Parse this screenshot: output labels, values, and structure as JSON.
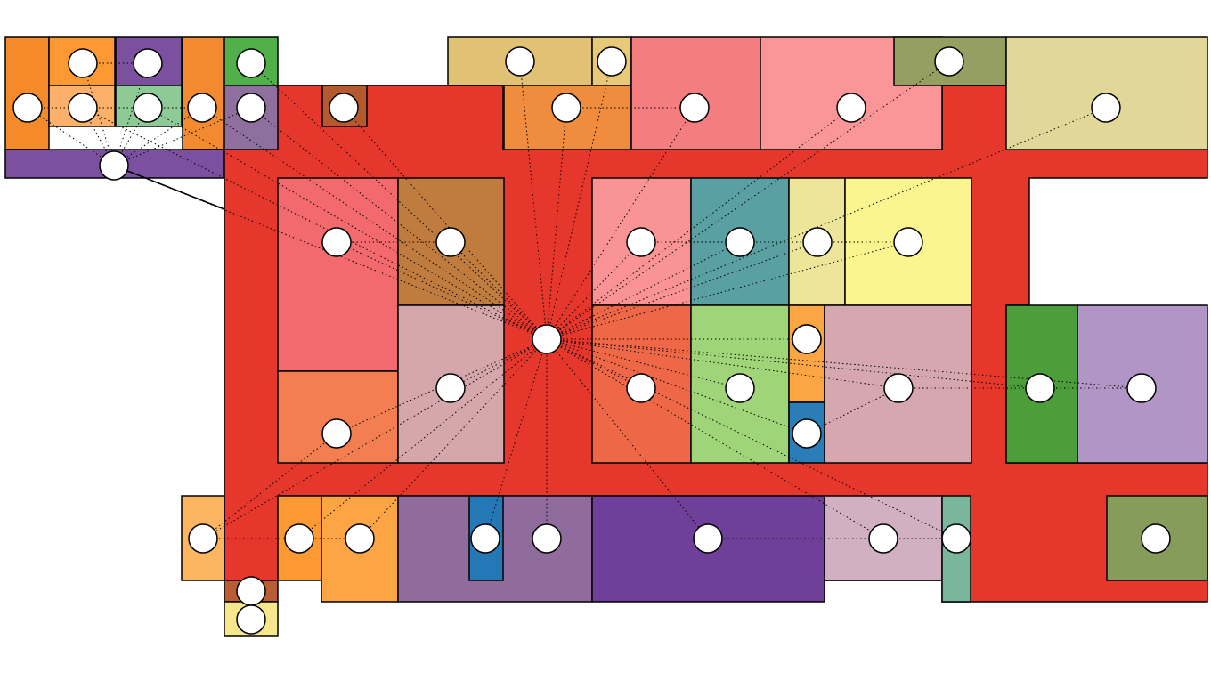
{
  "diagram": {
    "hub": "r0",
    "rooms": [
      {
        "id": "corridor",
        "color": "#e6372d"
      },
      {
        "id": "r1",
        "color": "#f58a2a"
      },
      {
        "id": "r2",
        "color": "#fd9933"
      },
      {
        "id": "r3",
        "color": "#7b519f"
      },
      {
        "id": "r4",
        "color": "#f38a30"
      },
      {
        "id": "r5",
        "color": "#52b04a"
      },
      {
        "id": "r6",
        "color": "#fcb06a"
      },
      {
        "id": "r7",
        "color": "#8dca96"
      },
      {
        "id": "r8",
        "color": "#8f6f9e"
      },
      {
        "id": "r9",
        "color": "#7b519f"
      },
      {
        "id": "r10",
        "color": "#b45a2e"
      },
      {
        "id": "r11",
        "color": "#e1c274"
      },
      {
        "id": "r12",
        "color": "#e8c97a"
      },
      {
        "id": "r13",
        "color": "#ef8c3e"
      },
      {
        "id": "r14",
        "color": "#f47d80"
      },
      {
        "id": "r15",
        "color": "#fa9697"
      },
      {
        "id": "r16",
        "color": "#959f62"
      },
      {
        "id": "r17",
        "color": "#e0d798"
      },
      {
        "id": "r18",
        "color": "#f26a6e"
      },
      {
        "id": "r19",
        "color": "#c07c3f"
      },
      {
        "id": "r20",
        "color": "#f27e52"
      },
      {
        "id": "r21",
        "color": "#d6a7aa"
      },
      {
        "id": "r22",
        "color": "#fa9494"
      },
      {
        "id": "r23",
        "color": "#5a9fa2"
      },
      {
        "id": "r24",
        "color": "#ede59a"
      },
      {
        "id": "r25",
        "color": "#faf58e"
      },
      {
        "id": "r26",
        "color": "#ee6848"
      },
      {
        "id": "r27",
        "color": "#a0d479"
      },
      {
        "id": "r28",
        "color": "#fca543"
      },
      {
        "id": "r29",
        "color": "#2b7db8"
      },
      {
        "id": "r30",
        "color": "#d6a7ae"
      },
      {
        "id": "r31",
        "color": "#4b9e39"
      },
      {
        "id": "r32",
        "color": "#b195c6"
      },
      {
        "id": "r33",
        "color": "#fcb662"
      },
      {
        "id": "r34",
        "color": "#fd9933"
      },
      {
        "id": "r35",
        "color": "#fda444"
      },
      {
        "id": "r36",
        "color": "#8f6c9c"
      },
      {
        "id": "r37",
        "color": "#2578b6"
      },
      {
        "id": "r38",
        "color": "#6f409a"
      },
      {
        "id": "r39",
        "color": "#d1b0c3"
      },
      {
        "id": "r40",
        "color": "#79b69c"
      },
      {
        "id": "r41",
        "color": "#869c5b"
      },
      {
        "id": "r42",
        "color": "#b85d35"
      },
      {
        "id": "r43",
        "color": "#f6e68c"
      }
    ],
    "nodes": [
      "r0",
      "n1",
      "n2",
      "n3",
      "n4",
      "n5",
      "n6",
      "n7",
      "n8",
      "n9",
      "n10",
      "n11",
      "n12",
      "n13",
      "n14",
      "n15",
      "n16",
      "n17",
      "n18",
      "n19",
      "n20",
      "n21",
      "n22",
      "n23",
      "n24",
      "n25",
      "n26",
      "n27",
      "n28",
      "n29",
      "n30",
      "n31",
      "n32",
      "n33",
      "n34",
      "n35",
      "n36",
      "n37",
      "n38",
      "n39",
      "n40",
      "n41",
      "n42",
      "n43",
      "n44"
    ],
    "edges": [
      [
        "r0",
        "n4"
      ],
      [
        "r0",
        "n5"
      ],
      [
        "r0",
        "n6"
      ],
      [
        "r0",
        "n7"
      ],
      [
        "r0",
        "n8"
      ],
      [
        "r0",
        "n9"
      ],
      [
        "r0",
        "n10"
      ],
      [
        "r0",
        "n11"
      ],
      [
        "r0",
        "n12"
      ],
      [
        "r0",
        "n13"
      ],
      [
        "r0",
        "n14"
      ],
      [
        "r0",
        "n15"
      ],
      [
        "r0",
        "n16"
      ],
      [
        "r0",
        "n17"
      ],
      [
        "r0",
        "n18"
      ],
      [
        "r0",
        "n19"
      ],
      [
        "r0",
        "n20"
      ],
      [
        "r0",
        "n21"
      ],
      [
        "r0",
        "n22"
      ],
      [
        "r0",
        "n23"
      ],
      [
        "r0",
        "n24"
      ],
      [
        "r0",
        "n25"
      ],
      [
        "r0",
        "n26"
      ],
      [
        "r0",
        "n27"
      ],
      [
        "r0",
        "n28"
      ],
      [
        "r0",
        "n29"
      ],
      [
        "r0",
        "n30"
      ],
      [
        "r0",
        "n31"
      ],
      [
        "r0",
        "n32"
      ],
      [
        "r0",
        "n33"
      ],
      [
        "r0",
        "n34"
      ],
      [
        "r0",
        "n35"
      ],
      [
        "r0",
        "n36"
      ],
      [
        "r0",
        "n37"
      ],
      [
        "r0",
        "n38"
      ],
      [
        "r0",
        "n39"
      ],
      [
        "r0",
        "n40"
      ],
      [
        "n9",
        "n1"
      ],
      [
        "n9",
        "n2"
      ],
      [
        "n9",
        "n3"
      ],
      [
        "n9",
        "n5"
      ],
      [
        "n9",
        "n6"
      ],
      [
        "n9",
        "n7"
      ],
      [
        "n9",
        "n8"
      ],
      [
        "n1",
        "n2"
      ],
      [
        "n3",
        "n5"
      ],
      [
        "n5",
        "n6"
      ],
      [
        "n6",
        "n7"
      ],
      [
        "n13",
        "n14"
      ],
      [
        "n18",
        "n19"
      ],
      [
        "n20",
        "n21"
      ],
      [
        "n21",
        "n22"
      ],
      [
        "n22",
        "n23"
      ],
      [
        "n28",
        "n29"
      ],
      [
        "n30",
        "n31"
      ],
      [
        "n32",
        "n33"
      ],
      [
        "n33",
        "n34"
      ],
      [
        "n34",
        "n35"
      ],
      [
        "n38",
        "n39"
      ],
      [
        "n39",
        "n40"
      ],
      [
        "n28",
        "n30"
      ]
    ]
  }
}
